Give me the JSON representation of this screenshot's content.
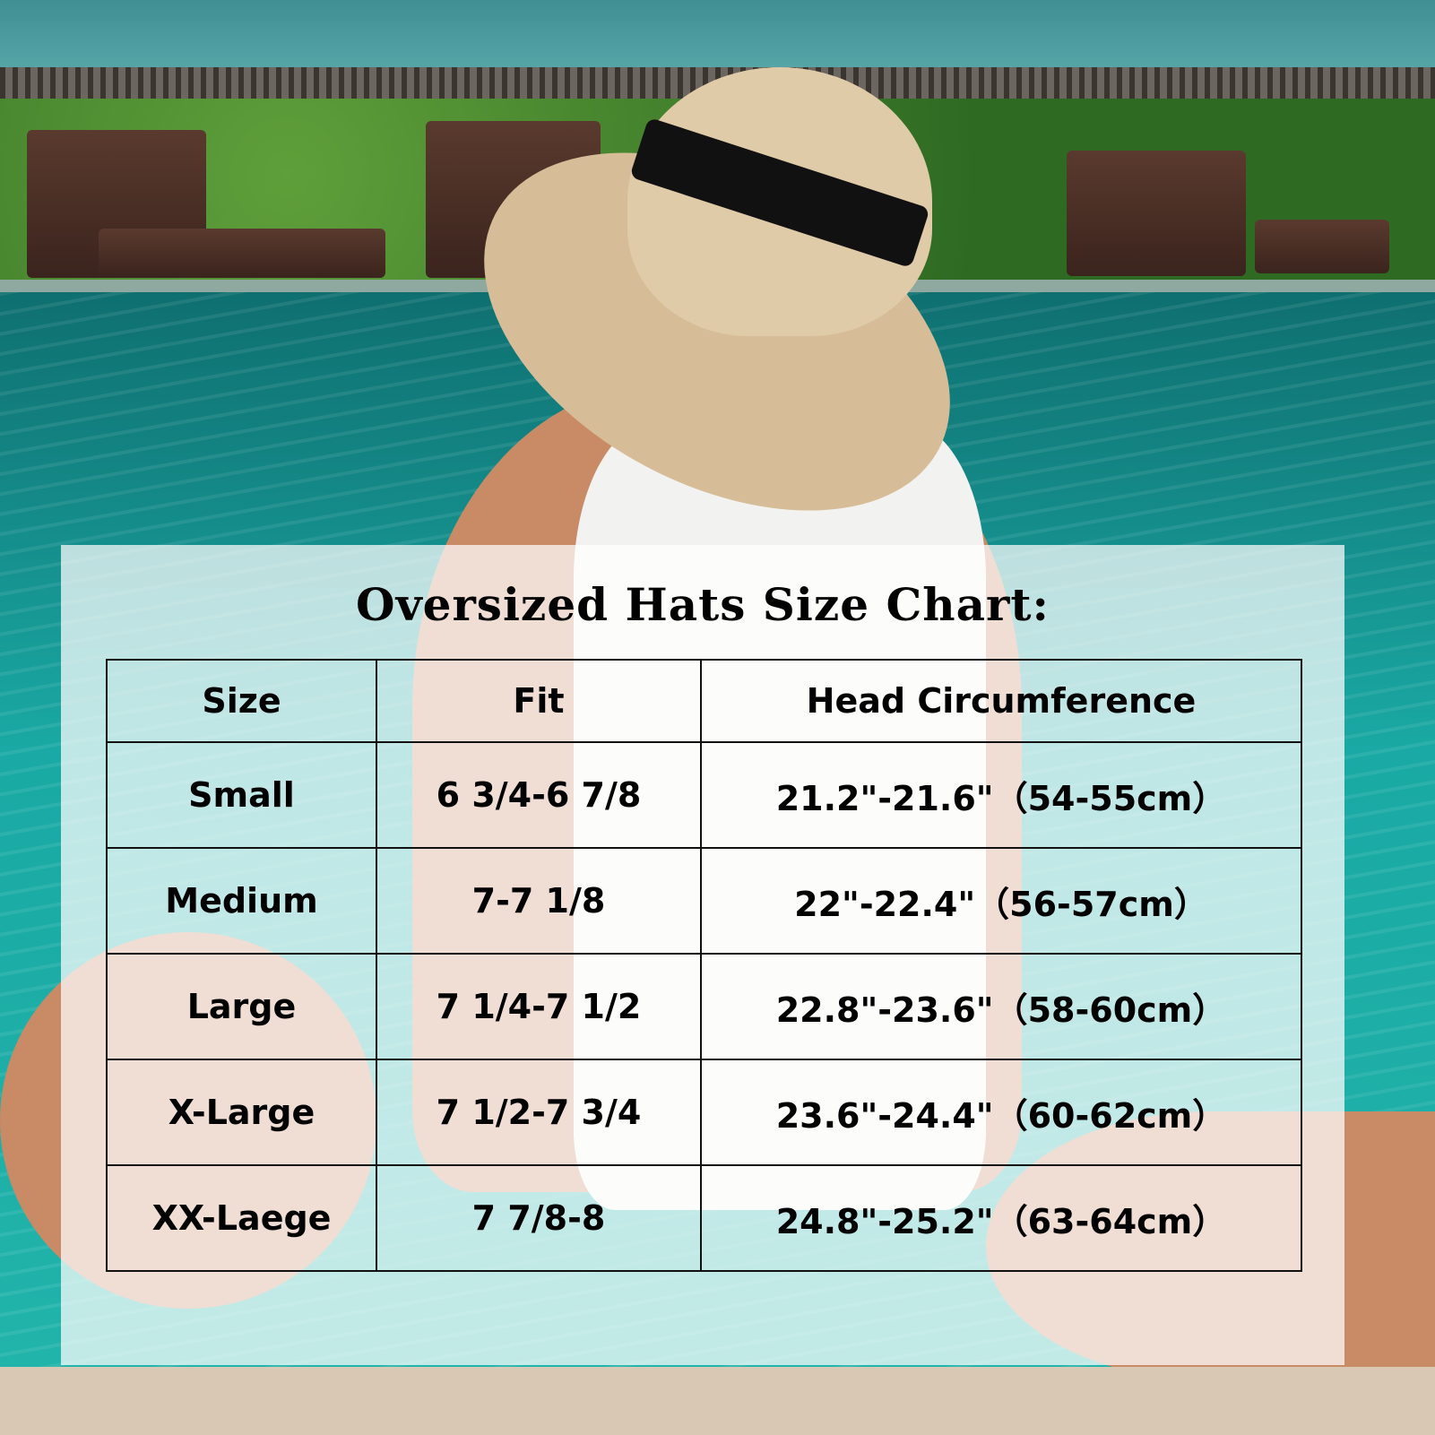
{
  "title": "Oversized Hats Size Chart:",
  "table": {
    "headers": [
      "Size",
      "Fit",
      "Head Circumference"
    ],
    "rows": [
      [
        "Small",
        "6 3/4-6 7/8",
        "21.2\"-21.6\"（54-55cm）"
      ],
      [
        "Medium",
        "7-7 1/8",
        "22\"-22.4\"（56-57cm）"
      ],
      [
        "Large",
        "7 1/4-7 1/2",
        "22.8\"-23.6\"（58-60cm）"
      ],
      [
        "X-Large",
        "7 1/2-7 3/4",
        "23.6\"-24.4\"（60-62cm）"
      ],
      [
        "XX-Laege",
        "7 7/8-8",
        "24.8\"-25.2\"（63-64cm）"
      ]
    ]
  }
}
